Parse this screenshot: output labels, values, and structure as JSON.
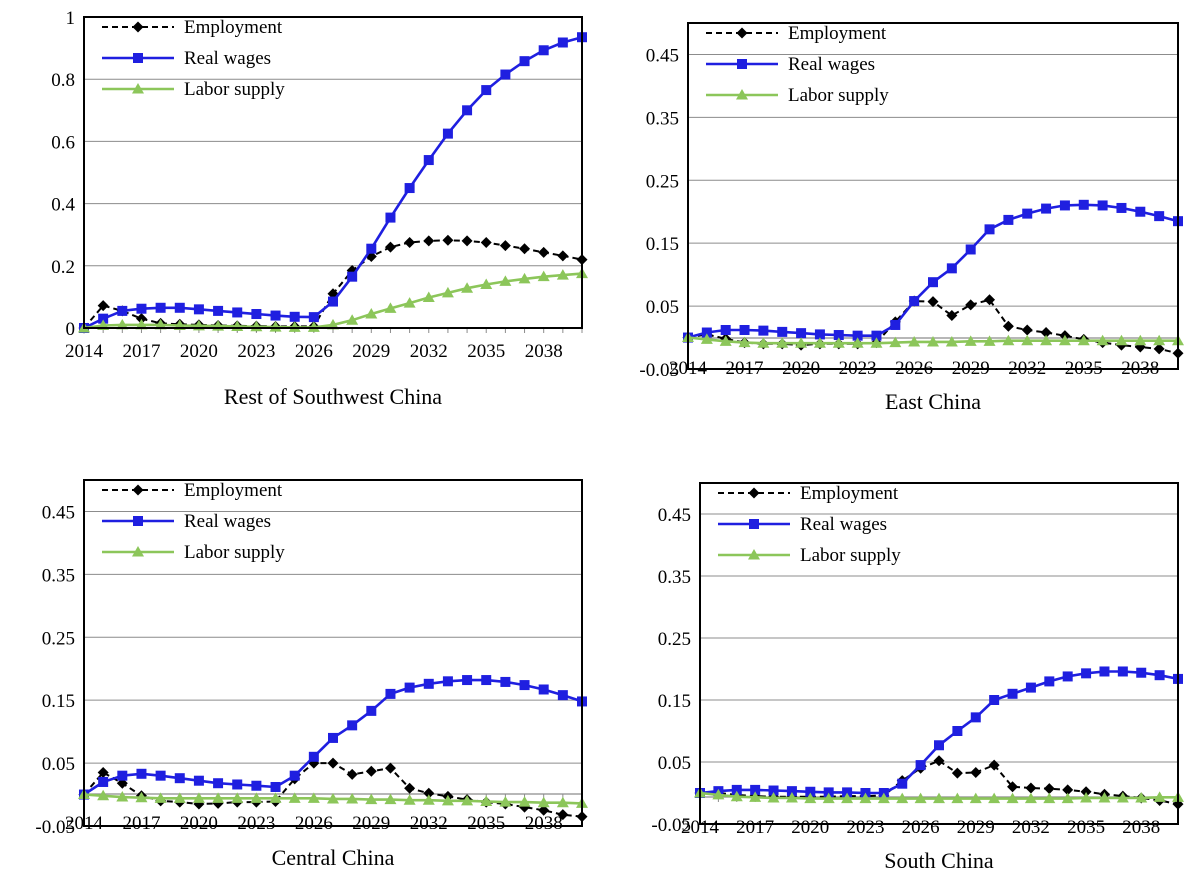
{
  "chart_data": [
    {
      "type": "line",
      "title": "Rest of Southwest China",
      "x": [
        2014,
        2015,
        2016,
        2017,
        2018,
        2019,
        2020,
        2021,
        2022,
        2023,
        2024,
        2025,
        2026,
        2027,
        2028,
        2029,
        2030,
        2031,
        2032,
        2033,
        2034,
        2035,
        2036,
        2037,
        2038,
        2039,
        2040
      ],
      "x_tick_labels": [
        "2014",
        "2017",
        "2020",
        "2023",
        "2026",
        "2029",
        "2032",
        "2035",
        "2038"
      ],
      "ylim": [
        0,
        1
      ],
      "y_ticks": [
        0,
        0.2,
        0.4,
        0.6,
        0.8,
        1
      ],
      "y_tick_labels": [
        "0",
        "0.2",
        "0.4",
        "0.6",
        "0.8",
        "1"
      ],
      "grid": true,
      "legend_position": "top-left",
      "series": [
        {
          "name": "Employment",
          "color": "#000000",
          "dash": true,
          "marker": "diamond",
          "values": [
            0,
            0.072,
            0.055,
            0.03,
            0.015,
            0.012,
            0.01,
            0.008,
            0.007,
            0.006,
            0.005,
            0.005,
            0.005,
            0.11,
            0.185,
            0.23,
            0.26,
            0.275,
            0.28,
            0.282,
            0.28,
            0.275,
            0.265,
            0.255,
            0.243,
            0.232,
            0.22
          ]
        },
        {
          "name": "Real wages",
          "color": "#1f1fe0",
          "dash": false,
          "marker": "square",
          "values": [
            0,
            0.03,
            0.055,
            0.062,
            0.065,
            0.065,
            0.06,
            0.055,
            0.05,
            0.045,
            0.04,
            0.036,
            0.035,
            0.085,
            0.165,
            0.255,
            0.355,
            0.45,
            0.54,
            0.625,
            0.7,
            0.765,
            0.815,
            0.858,
            0.893,
            0.918,
            0.935
          ]
        },
        {
          "name": "Labor supply",
          "color": "#8cc65a",
          "dash": false,
          "marker": "triangle",
          "values": [
            0,
            0.008,
            0.01,
            0.01,
            0.01,
            0.008,
            0.007,
            0.006,
            0.005,
            0.004,
            0.003,
            0.002,
            0.002,
            0.01,
            0.025,
            0.045,
            0.063,
            0.08,
            0.098,
            0.113,
            0.128,
            0.14,
            0.15,
            0.158,
            0.165,
            0.17,
            0.175
          ]
        }
      ]
    },
    {
      "type": "line",
      "title": "East China",
      "x": [
        2014,
        2015,
        2016,
        2017,
        2018,
        2019,
        2020,
        2021,
        2022,
        2023,
        2024,
        2025,
        2026,
        2027,
        2028,
        2029,
        2030,
        2031,
        2032,
        2033,
        2034,
        2035,
        2036,
        2037,
        2038,
        2039,
        2040
      ],
      "x_tick_labels": [
        "2014",
        "2017",
        "2020",
        "2023",
        "2026",
        "2029",
        "2032",
        "2035",
        "2038"
      ],
      "ylim": [
        -0.05,
        0.5
      ],
      "y_ticks": [
        -0.05,
        0.05,
        0.15,
        0.25,
        0.35,
        0.45
      ],
      "y_tick_labels": [
        "-0.05",
        "0.05",
        "0.15",
        "0.25",
        "0.35",
        "0.45"
      ],
      "grid": true,
      "legend_position": "top-left",
      "series": [
        {
          "name": "Employment",
          "color": "#000000",
          "dash": true,
          "marker": "diamond",
          "values": [
            0,
            0.005,
            -0.002,
            -0.008,
            -0.01,
            -0.01,
            -0.012,
            -0.01,
            -0.01,
            -0.01,
            -0.008,
            0.025,
            0.058,
            0.057,
            0.035,
            0.052,
            0.06,
            0.018,
            0.012,
            0.008,
            0.003,
            -0.003,
            -0.008,
            -0.012,
            -0.015,
            -0.018,
            -0.025
          ]
        },
        {
          "name": "Real wages",
          "color": "#1f1fe0",
          "dash": false,
          "marker": "square",
          "values": [
            0,
            0.008,
            0.012,
            0.012,
            0.011,
            0.009,
            0.007,
            0.005,
            0.004,
            0.003,
            0.003,
            0.02,
            0.058,
            0.088,
            0.11,
            0.14,
            0.172,
            0.187,
            0.197,
            0.205,
            0.21,
            0.211,
            0.21,
            0.206,
            0.2,
            0.193,
            0.185
          ]
        },
        {
          "name": "Labor supply",
          "color": "#8cc65a",
          "dash": false,
          "marker": "triangle",
          "values": [
            0,
            -0.003,
            -0.006,
            -0.008,
            -0.009,
            -0.009,
            -0.009,
            -0.009,
            -0.009,
            -0.009,
            -0.009,
            -0.008,
            -0.007,
            -0.007,
            -0.007,
            -0.006,
            -0.006,
            -0.005,
            -0.005,
            -0.005,
            -0.005,
            -0.005,
            -0.005,
            -0.005,
            -0.005,
            -0.005,
            -0.005
          ]
        }
      ]
    },
    {
      "type": "line",
      "title": "Central China",
      "x": [
        2014,
        2015,
        2016,
        2017,
        2018,
        2019,
        2020,
        2021,
        2022,
        2023,
        2024,
        2025,
        2026,
        2027,
        2028,
        2029,
        2030,
        2031,
        2032,
        2033,
        2034,
        2035,
        2036,
        2037,
        2038,
        2039,
        2040
      ],
      "x_tick_labels": [
        "2014",
        "2017",
        "2020",
        "2023",
        "2026",
        "2029",
        "2032",
        "2035",
        "2038"
      ],
      "ylim": [
        -0.05,
        0.5
      ],
      "y_ticks": [
        -0.05,
        0.05,
        0.15,
        0.25,
        0.35,
        0.45
      ],
      "y_tick_labels": [
        "-0.05",
        "0.05",
        "0.15",
        "0.25",
        "0.35",
        "0.45"
      ],
      "grid": true,
      "legend_position": "top-left",
      "series": [
        {
          "name": "Employment",
          "color": "#000000",
          "dash": true,
          "marker": "diamond",
          "values": [
            0,
            0.035,
            0.018,
            -0.002,
            -0.01,
            -0.012,
            -0.015,
            -0.014,
            -0.012,
            -0.012,
            -0.011,
            0.025,
            0.05,
            0.05,
            0.032,
            0.037,
            0.042,
            0.01,
            0.002,
            -0.003,
            -0.008,
            -0.012,
            -0.015,
            -0.02,
            -0.025,
            -0.032,
            -0.035
          ]
        },
        {
          "name": "Real wages",
          "color": "#1f1fe0",
          "dash": false,
          "marker": "square",
          "values": [
            0,
            0.02,
            0.03,
            0.033,
            0.03,
            0.026,
            0.022,
            0.018,
            0.016,
            0.014,
            0.012,
            0.03,
            0.06,
            0.09,
            0.11,
            0.133,
            0.16,
            0.17,
            0.176,
            0.18,
            0.182,
            0.182,
            0.179,
            0.174,
            0.167,
            0.158,
            0.148
          ]
        },
        {
          "name": "Labor supply",
          "color": "#8cc65a",
          "dash": false,
          "marker": "triangle",
          "values": [
            0,
            -0.002,
            -0.004,
            -0.005,
            -0.006,
            -0.006,
            -0.006,
            -0.006,
            -0.006,
            -0.006,
            -0.006,
            -0.006,
            -0.006,
            -0.007,
            -0.007,
            -0.008,
            -0.008,
            -0.009,
            -0.009,
            -0.01,
            -0.01,
            -0.011,
            -0.012,
            -0.012,
            -0.013,
            -0.013,
            -0.014
          ]
        }
      ]
    },
    {
      "type": "line",
      "title": "South China",
      "x": [
        2014,
        2015,
        2016,
        2017,
        2018,
        2019,
        2020,
        2021,
        2022,
        2023,
        2024,
        2025,
        2026,
        2027,
        2028,
        2029,
        2030,
        2031,
        2032,
        2033,
        2034,
        2035,
        2036,
        2037,
        2038,
        2039,
        2040
      ],
      "x_tick_labels": [
        "2014",
        "2017",
        "2020",
        "2023",
        "2026",
        "2029",
        "2032",
        "2035",
        "2038"
      ],
      "ylim": [
        -0.05,
        0.5
      ],
      "y_ticks": [
        -0.05,
        0.05,
        0.15,
        0.25,
        0.35,
        0.45
      ],
      "y_tick_labels": [
        "-0.05",
        "0.05",
        "0.15",
        "0.25",
        "0.35",
        "0.45"
      ],
      "grid": true,
      "legend_position": "top-left",
      "series": [
        {
          "name": "Employment",
          "color": "#000000",
          "dash": true,
          "marker": "diamond",
          "values": [
            0,
            0,
            -0.003,
            -0.005,
            -0.006,
            -0.006,
            -0.006,
            -0.006,
            -0.005,
            -0.005,
            -0.004,
            0.02,
            0.04,
            0.052,
            0.032,
            0.033,
            0.045,
            0.01,
            0.008,
            0.007,
            0.005,
            0.002,
            -0.002,
            -0.005,
            -0.008,
            -0.012,
            -0.018
          ]
        },
        {
          "name": "Real wages",
          "color": "#1f1fe0",
          "dash": false,
          "marker": "square",
          "values": [
            0,
            0.003,
            0.005,
            0.005,
            0.004,
            0.003,
            0.002,
            0.001,
            0.001,
            0,
            0,
            0.015,
            0.045,
            0.077,
            0.1,
            0.122,
            0.15,
            0.16,
            0.17,
            0.18,
            0.188,
            0.193,
            0.196,
            0.196,
            0.194,
            0.19,
            0.184
          ]
        },
        {
          "name": "Labor supply",
          "color": "#8cc65a",
          "dash": false,
          "marker": "triangle",
          "values": [
            0,
            -0.003,
            -0.006,
            -0.007,
            -0.008,
            -0.008,
            -0.009,
            -0.009,
            -0.009,
            -0.009,
            -0.009,
            -0.009,
            -0.009,
            -0.009,
            -0.009,
            -0.009,
            -0.009,
            -0.009,
            -0.009,
            -0.009,
            -0.009,
            -0.008,
            -0.008,
            -0.008,
            -0.008,
            -0.007,
            -0.007
          ]
        }
      ]
    }
  ]
}
